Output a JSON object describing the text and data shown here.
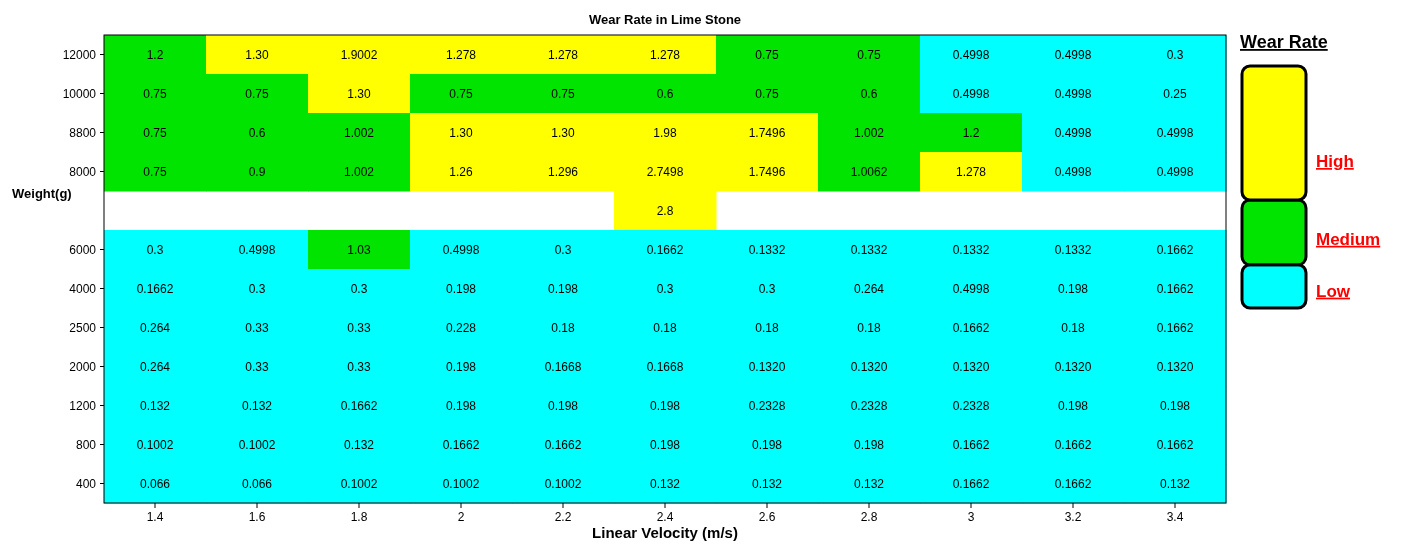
{
  "chart_data": {
    "type": "heatmap",
    "title": "Wear Rate in Lime Stone",
    "xlabel": "Linear Velocity (m/s)",
    "ylabel": "Weight(g)",
    "clabel": "Wear Rate",
    "categories": [
      "1.4",
      "1.6",
      "1.8",
      "2",
      "2.2",
      "2.4",
      "2.6",
      "2.8",
      "3",
      "3.2",
      "3.4"
    ],
    "y_categories": [
      "12000",
      "10000",
      "8800",
      "8000",
      null,
      "6000",
      "4000",
      "2500",
      "2000",
      "1200",
      "800",
      "400"
    ],
    "clim": [
      0,
      2.8
    ],
    "cticks": [
      {
        "value": 1.7,
        "label": "High"
      },
      {
        "value": 0.8,
        "label": "Medium"
      },
      {
        "value": 0.2,
        "label": "Low"
      }
    ],
    "colors": [
      "#ffff00",
      "#00e400",
      "#00ffff"
    ],
    "cells": [
      [
        1.2,
        1.3,
        1.9002,
        1.278,
        1.278,
        1.278,
        0.75,
        0.75,
        0.4998,
        0.4998,
        0.3
      ],
      [
        0.75,
        0.75,
        1.3,
        0.75,
        0.75,
        0.6,
        0.75,
        0.6,
        0.4998,
        0.4998,
        0.25
      ],
      [
        0.75,
        0.6,
        1.002,
        1.3,
        1.3,
        1.98,
        1.7496,
        1.002,
        1.2,
        0.4998,
        0.4998
      ],
      [
        0.75,
        0.9,
        1.002,
        1.26,
        1.296,
        2.7498,
        1.7496,
        1.0062,
        1.278,
        0.4998,
        0.4998
      ],
      [
        null,
        null,
        null,
        null,
        null,
        2.8,
        null,
        null,
        null,
        null,
        null
      ],
      [
        0.3,
        0.4998,
        1.03,
        0.4998,
        0.3,
        0.1662,
        0.1332,
        0.1332,
        0.1332,
        0.1332,
        0.1662
      ],
      [
        0.1662,
        0.3,
        0.3,
        0.198,
        0.198,
        0.3,
        0.3,
        0.264,
        0.4998,
        0.198,
        0.1662
      ],
      [
        0.264,
        0.33,
        0.33,
        0.228,
        0.18,
        0.18,
        0.18,
        0.18,
        0.1662,
        0.18,
        0.1662
      ],
      [
        0.264,
        0.33,
        0.33,
        0.198,
        0.1668,
        0.1668,
        0.132,
        0.132,
        0.132,
        0.132,
        0.132
      ],
      [
        0.132,
        0.132,
        0.1662,
        0.198,
        0.198,
        0.198,
        0.2328,
        0.2328,
        0.2328,
        0.198,
        0.198
      ],
      [
        0.1002,
        0.1002,
        0.132,
        0.1662,
        0.1662,
        0.198,
        0.198,
        0.198,
        0.1662,
        0.1662,
        0.1662
      ],
      [
        0.066,
        0.066,
        0.1002,
        0.1002,
        0.1002,
        0.132,
        0.132,
        0.132,
        0.1662,
        0.1662,
        0.132
      ]
    ],
    "cell_labels": [
      [
        "1.2",
        "1.30",
        "1.9002",
        "1.278",
        "1.278",
        "1.278",
        "0.75",
        "0.75",
        "0.4998",
        "0.4998",
        "0.3"
      ],
      [
        "0.75",
        "0.75",
        "1.30",
        "0.75",
        "0.75",
        "0.6",
        "0.75",
        "0.6",
        "0.4998",
        "0.4998",
        "0.25"
      ],
      [
        "0.75",
        "0.6",
        "1.002",
        "1.30",
        "1.30",
        "1.98",
        "1.7496",
        "1.002",
        "1.2",
        "0.4998",
        "0.4998"
      ],
      [
        "0.75",
        "0.9",
        "1.002",
        "1.26",
        "1.296",
        "2.7498",
        "1.7496",
        "1.0062",
        "1.278",
        "0.4998",
        "0.4998"
      ],
      [
        null,
        null,
        null,
        null,
        null,
        "2.8",
        null,
        null,
        null,
        null,
        null
      ],
      [
        "0.3",
        "0.4998",
        "1.03",
        "0.4998",
        "0.3",
        "0.1662",
        "0.1332",
        "0.1332",
        "0.1332",
        "0.1332",
        "0.1662"
      ],
      [
        "0.1662",
        "0.3",
        "0.3",
        "0.198",
        "0.198",
        "0.3",
        "0.3",
        "0.264",
        "0.4998",
        "0.198",
        "0.1662"
      ],
      [
        "0.264",
        "0.33",
        "0.33",
        "0.228",
        "0.18",
        "0.18",
        "0.18",
        "0.18",
        "0.1662",
        "0.18",
        "0.1662"
      ],
      [
        "0.264",
        "0.33",
        "0.33",
        "0.198",
        "0.1668",
        "0.1668",
        "0.1320",
        "0.1320",
        "0.1320",
        "0.1320",
        "0.1320"
      ],
      [
        "0.132",
        "0.132",
        "0.1662",
        "0.198",
        "0.198",
        "0.198",
        "0.2328",
        "0.2328",
        "0.2328",
        "0.198",
        "0.198"
      ],
      [
        "0.1002",
        "0.1002",
        "0.132",
        "0.1662",
        "0.1662",
        "0.198",
        "0.198",
        "0.198",
        "0.1662",
        "0.1662",
        "0.1662"
      ],
      [
        "0.066",
        "0.066",
        "0.1002",
        "0.1002",
        "0.1002",
        "0.132",
        "0.132",
        "0.132",
        "0.1662",
        "0.1662",
        "0.132"
      ]
    ]
  }
}
